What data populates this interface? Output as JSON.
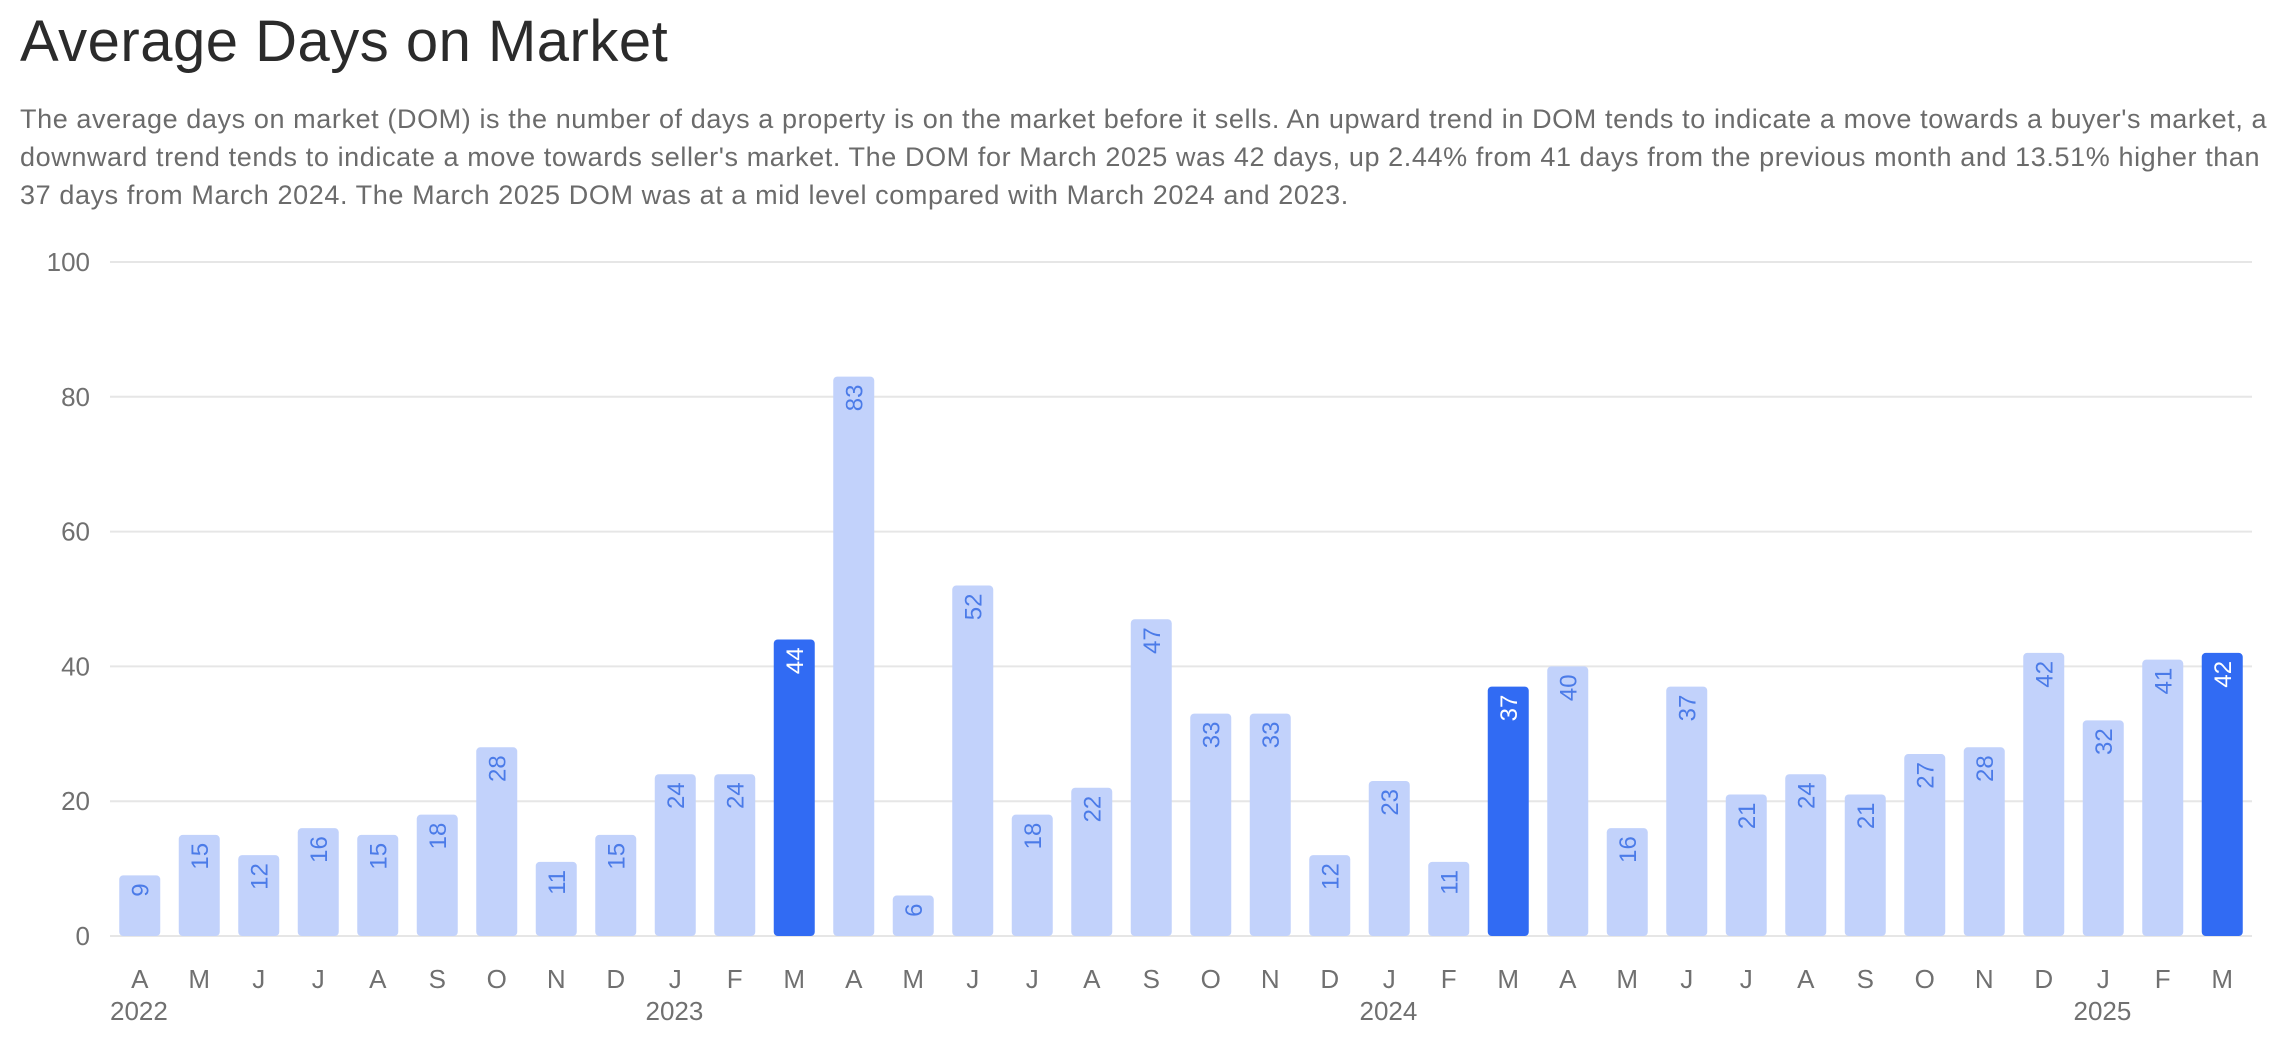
{
  "title": "Average Days on Market",
  "description": "The average days on market (DOM) is the number of days a property is on the market before it sells. An upward trend in DOM tends to indicate a move towards a buyer's market, a downward trend tends to indicate a move towards seller's market. The DOM for March 2025 was 42 days, up 2.44% from 41 days from the previous month and 13.51% higher than 37 days from March 2024. The March 2025 DOM was at a mid level compared with March 2024 and 2023.",
  "colors": {
    "bar": "#c2d2fb",
    "highlight": "#316bf3",
    "label": "#4b7be8",
    "label_highlight": "#ffffff",
    "grid": "#e6e6e6"
  },
  "chart_data": {
    "type": "bar",
    "title": "Average Days on Market",
    "xlabel": "",
    "ylabel": "",
    "ylim": [
      0,
      100
    ],
    "yticks": [
      0,
      20,
      40,
      60,
      80,
      100
    ],
    "grid": true,
    "categories": [
      "A",
      "M",
      "J",
      "J",
      "A",
      "S",
      "O",
      "N",
      "D",
      "J",
      "F",
      "M",
      "A",
      "M",
      "J",
      "J",
      "A",
      "S",
      "O",
      "N",
      "D",
      "J",
      "F",
      "M",
      "A",
      "M",
      "J",
      "J",
      "A",
      "S",
      "O",
      "N",
      "D",
      "J",
      "F",
      "M"
    ],
    "months": [
      "Apr 2022",
      "May 2022",
      "Jun 2022",
      "Jul 2022",
      "Aug 2022",
      "Sep 2022",
      "Oct 2022",
      "Nov 2022",
      "Dec 2022",
      "Jan 2023",
      "Feb 2023",
      "Mar 2023",
      "Apr 2023",
      "May 2023",
      "Jun 2023",
      "Jul 2023",
      "Aug 2023",
      "Sep 2023",
      "Oct 2023",
      "Nov 2023",
      "Dec 2023",
      "Jan 2024",
      "Feb 2024",
      "Mar 2024",
      "Apr 2024",
      "May 2024",
      "Jun 2024",
      "Jul 2024",
      "Aug 2024",
      "Sep 2024",
      "Oct 2024",
      "Nov 2024",
      "Dec 2024",
      "Jan 2025",
      "Feb 2025",
      "Mar 2025"
    ],
    "values": [
      9,
      15,
      12,
      16,
      15,
      18,
      28,
      11,
      15,
      24,
      24,
      44,
      83,
      6,
      52,
      18,
      22,
      47,
      33,
      33,
      12,
      23,
      11,
      37,
      40,
      16,
      37,
      21,
      24,
      21,
      27,
      28,
      42,
      32,
      41,
      42
    ],
    "highlighted_indices": [
      11,
      23,
      35
    ],
    "year_labels": [
      {
        "text": "2022",
        "index": 0
      },
      {
        "text": "2023",
        "index": 9
      },
      {
        "text": "2024",
        "index": 21
      },
      {
        "text": "2025",
        "index": 33
      }
    ]
  }
}
